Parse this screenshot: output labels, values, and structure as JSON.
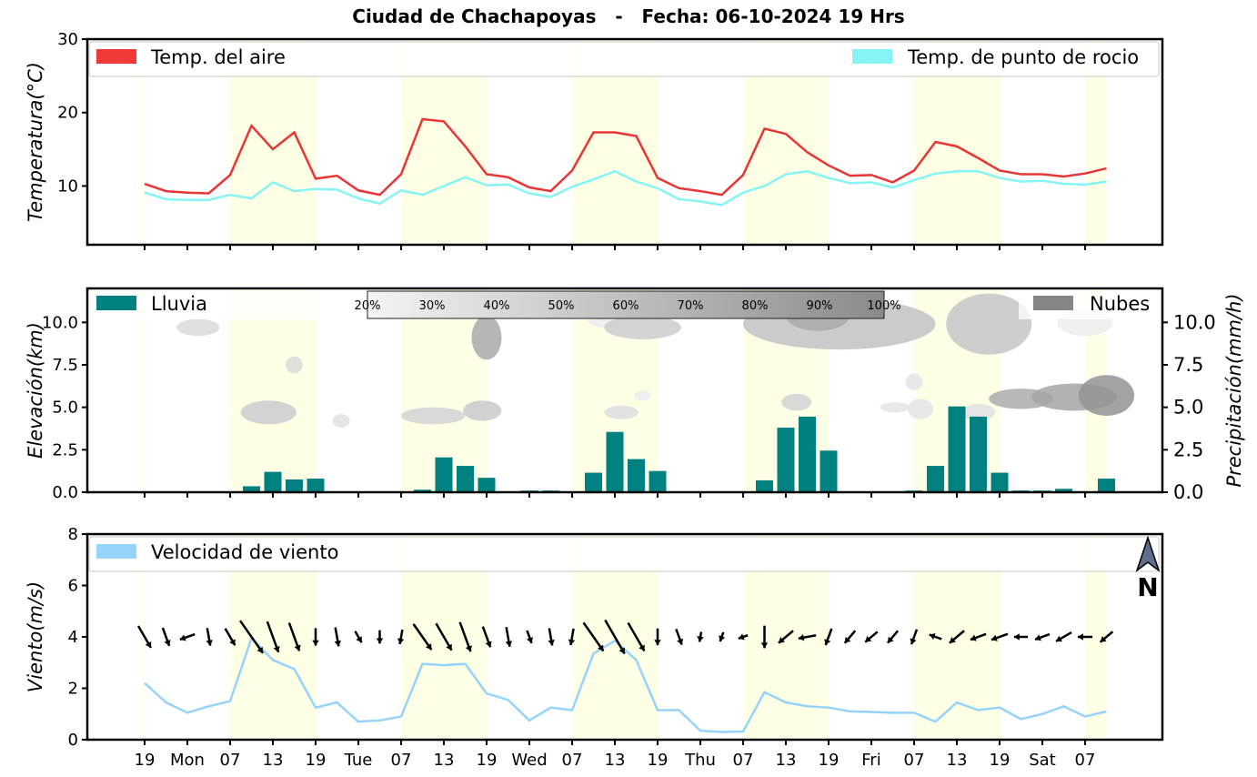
{
  "title": "Ciudad de Chachapoyas   -   Fecha: 06-10-2024 19 Hrs",
  "chart_data": [
    {
      "type": "line",
      "panel": "temperature",
      "ylabel": "Temperatura(°C)",
      "ylim": [
        2,
        30
      ],
      "yticks": [
        "10",
        "20",
        "30"
      ],
      "legend": [
        {
          "label": "Temp. del aire",
          "color": "#f03a3a"
        },
        {
          "label": "Temp. de punto de rocio",
          "color": "#86f4f4"
        }
      ],
      "series": [
        {
          "name": "Temp. del aire",
          "color": "#e83535",
          "values": [
            10.3,
            9.3,
            9.1,
            9.0,
            11.5,
            18.2,
            15.0,
            17.3,
            11.0,
            11.4,
            9.4,
            8.8,
            11.6,
            19.1,
            18.8,
            15.4,
            11.6,
            11.2,
            9.8,
            9.3,
            12.1,
            17.3,
            17.3,
            16.8,
            11.1,
            9.7,
            9.3,
            8.8,
            11.5,
            17.8,
            17.1,
            14.6,
            12.8,
            11.4,
            11.5,
            10.5,
            12.1,
            16.0,
            15.4,
            13.8,
            12.1,
            11.6,
            11.6,
            11.3,
            11.7,
            12.4
          ]
        },
        {
          "name": "Temp. de punto de rocio",
          "color": "#86f4f4",
          "values": [
            9.1,
            8.2,
            8.1,
            8.1,
            8.8,
            8.3,
            10.5,
            9.3,
            9.6,
            9.5,
            8.3,
            7.6,
            9.4,
            8.8,
            10.0,
            11.2,
            10.1,
            10.2,
            9.0,
            8.5,
            9.9,
            10.9,
            12.0,
            10.6,
            9.7,
            8.2,
            7.9,
            7.4,
            9.1,
            10.0,
            11.6,
            12.0,
            11.1,
            10.4,
            10.5,
            9.8,
            10.8,
            11.7,
            12.0,
            12.0,
            11.1,
            10.6,
            10.7,
            10.3,
            10.2,
            10.6
          ]
        }
      ]
    },
    {
      "type": "bar",
      "panel": "rain_clouds",
      "ylabel": "Elevación(km)",
      "ylabel_right": "Precipitación(mm/h)",
      "ylim": [
        0,
        12
      ],
      "yticks": [
        "0.0",
        "2.5",
        "5.0",
        "7.5",
        "10.0"
      ],
      "legend": [
        {
          "label": "Lluvia",
          "color": "#008080"
        },
        {
          "label": "Nubes",
          "color": "#868686"
        }
      ],
      "cloud_scale": [
        "20%",
        "30%",
        "40%",
        "50%",
        "60%",
        "70%",
        "80%",
        "90%",
        "100%"
      ],
      "series": [
        {
          "name": "Lluvia",
          "color": "#008080",
          "values": [
            0,
            0,
            0,
            0,
            0,
            0.35,
            1.2,
            0.75,
            0.8,
            0,
            0,
            0,
            0,
            0.15,
            2.05,
            1.55,
            0.85,
            0,
            0.1,
            0.1,
            0.05,
            1.15,
            3.55,
            1.95,
            1.25,
            0,
            0,
            0,
            0,
            0.7,
            3.8,
            4.45,
            2.45,
            0.05,
            0,
            0,
            0.1,
            1.55,
            5.05,
            4.45,
            1.15,
            0.1,
            0.1,
            0.2,
            0,
            0.8
          ]
        }
      ],
      "clouds": [
        {
          "hour": 2.5,
          "km": 9.7,
          "w": 1.0,
          "h": 0.5,
          "c": "#d9d9dc"
        },
        {
          "hour": 7.0,
          "km": 7.5,
          "w": 0.4,
          "h": 0.5,
          "c": "#d9d9dc"
        },
        {
          "hour": 5.8,
          "km": 4.7,
          "w": 1.3,
          "h": 0.7,
          "c": "#cbcbce"
        },
        {
          "hour": 9.2,
          "km": 4.2,
          "w": 0.4,
          "h": 0.4,
          "c": "#e2e2e5"
        },
        {
          "hour": 13.5,
          "km": 4.5,
          "w": 1.5,
          "h": 0.5,
          "c": "#d2d2d5"
        },
        {
          "hour": 15.8,
          "km": 4.8,
          "w": 0.9,
          "h": 0.6,
          "c": "#c9c9cc"
        },
        {
          "hour": 16.0,
          "km": 9.1,
          "w": 0.7,
          "h": 1.3,
          "c": "#a9a9ac"
        },
        {
          "hour": 21.5,
          "km": 10.2,
          "w": 0.8,
          "h": 0.5,
          "c": "#ececee"
        },
        {
          "hour": 22.3,
          "km": 4.7,
          "w": 0.8,
          "h": 0.4,
          "c": "#dddde0"
        },
        {
          "hour": 23.3,
          "km": 9.7,
          "w": 1.8,
          "h": 0.7,
          "c": "#cdcdd0"
        },
        {
          "hour": 23.3,
          "km": 5.7,
          "w": 0.4,
          "h": 0.3,
          "c": "#ececee"
        },
        {
          "hour": 30.5,
          "km": 5.3,
          "w": 0.7,
          "h": 0.5,
          "c": "#d2d2d5"
        },
        {
          "hour": 32.5,
          "km": 9.9,
          "w": 4.5,
          "h": 1.5,
          "c": "#c2c2c5"
        },
        {
          "hour": 31.5,
          "km": 10.4,
          "w": 1.5,
          "h": 0.9,
          "c": "#aaaaad"
        },
        {
          "hour": 35.1,
          "km": 5.0,
          "w": 0.7,
          "h": 0.3,
          "c": "#e4e4e7"
        },
        {
          "hour": 36.0,
          "km": 6.5,
          "w": 0.4,
          "h": 0.5,
          "c": "#e4e4e7"
        },
        {
          "hour": 36.3,
          "km": 4.9,
          "w": 0.6,
          "h": 0.6,
          "c": "#e4e4e7"
        },
        {
          "hour": 39.5,
          "km": 9.9,
          "w": 2.0,
          "h": 1.8,
          "c": "#c6c6c9"
        },
        {
          "hour": 39.0,
          "km": 4.7,
          "w": 0.8,
          "h": 0.5,
          "c": "#e0e0e3"
        },
        {
          "hour": 41.0,
          "km": 5.5,
          "w": 1.5,
          "h": 0.6,
          "c": "#acacaf"
        },
        {
          "hour": 43.5,
          "km": 5.6,
          "w": 2.0,
          "h": 0.8,
          "c": "#a4a4a7"
        },
        {
          "hour": 45.0,
          "km": 5.7,
          "w": 1.3,
          "h": 1.2,
          "c": "#939396"
        },
        {
          "hour": 44.0,
          "km": 10.0,
          "w": 1.3,
          "h": 0.8,
          "c": "#ececee"
        }
      ]
    },
    {
      "type": "line",
      "panel": "wind",
      "ylabel": "Viento(m/s)",
      "ylim": [
        0,
        8
      ],
      "yticks": [
        "0",
        "2",
        "4",
        "6",
        "8"
      ],
      "legend": [
        {
          "label": "Velocidad de viento",
          "color": "#95d3fb"
        }
      ],
      "north_label": "N",
      "series": [
        {
          "name": "Velocidad de viento",
          "color": "#95d3fb",
          "values": [
            2.2,
            1.45,
            1.05,
            1.3,
            1.5,
            3.95,
            3.1,
            2.75,
            1.25,
            1.45,
            0.7,
            0.75,
            0.9,
            2.95,
            2.9,
            2.95,
            1.8,
            1.55,
            0.75,
            1.25,
            1.15,
            3.35,
            3.85,
            3.1,
            1.15,
            1.15,
            0.35,
            0.3,
            0.32,
            1.85,
            1.45,
            1.3,
            1.25,
            1.1,
            1.08,
            1.05,
            1.05,
            0.7,
            1.45,
            1.15,
            1.25,
            0.8,
            1.0,
            1.3,
            0.9,
            1.1
          ]
        }
      ],
      "wind_dir_deg": [
        300,
        290,
        200,
        280,
        300,
        305,
        290,
        290,
        270,
        280,
        300,
        270,
        260,
        305,
        300,
        290,
        290,
        280,
        290,
        280,
        260,
        305,
        300,
        300,
        270,
        290,
        260,
        250,
        200,
        270,
        220,
        190,
        250,
        230,
        220,
        230,
        250,
        160,
        220,
        200,
        200,
        180,
        200,
        210,
        180,
        220
      ]
    }
  ],
  "x_axis": {
    "start_hour": 19,
    "step_hours": 3,
    "tick_labels": [
      "19",
      "Mon",
      "07",
      "13",
      "19",
      "Tue",
      "07",
      "13",
      "19",
      "Wed",
      "07",
      "13",
      "19",
      "Thu",
      "07",
      "13",
      "19",
      "Fri",
      "07",
      "13",
      "19",
      "Sat",
      "07"
    ]
  }
}
